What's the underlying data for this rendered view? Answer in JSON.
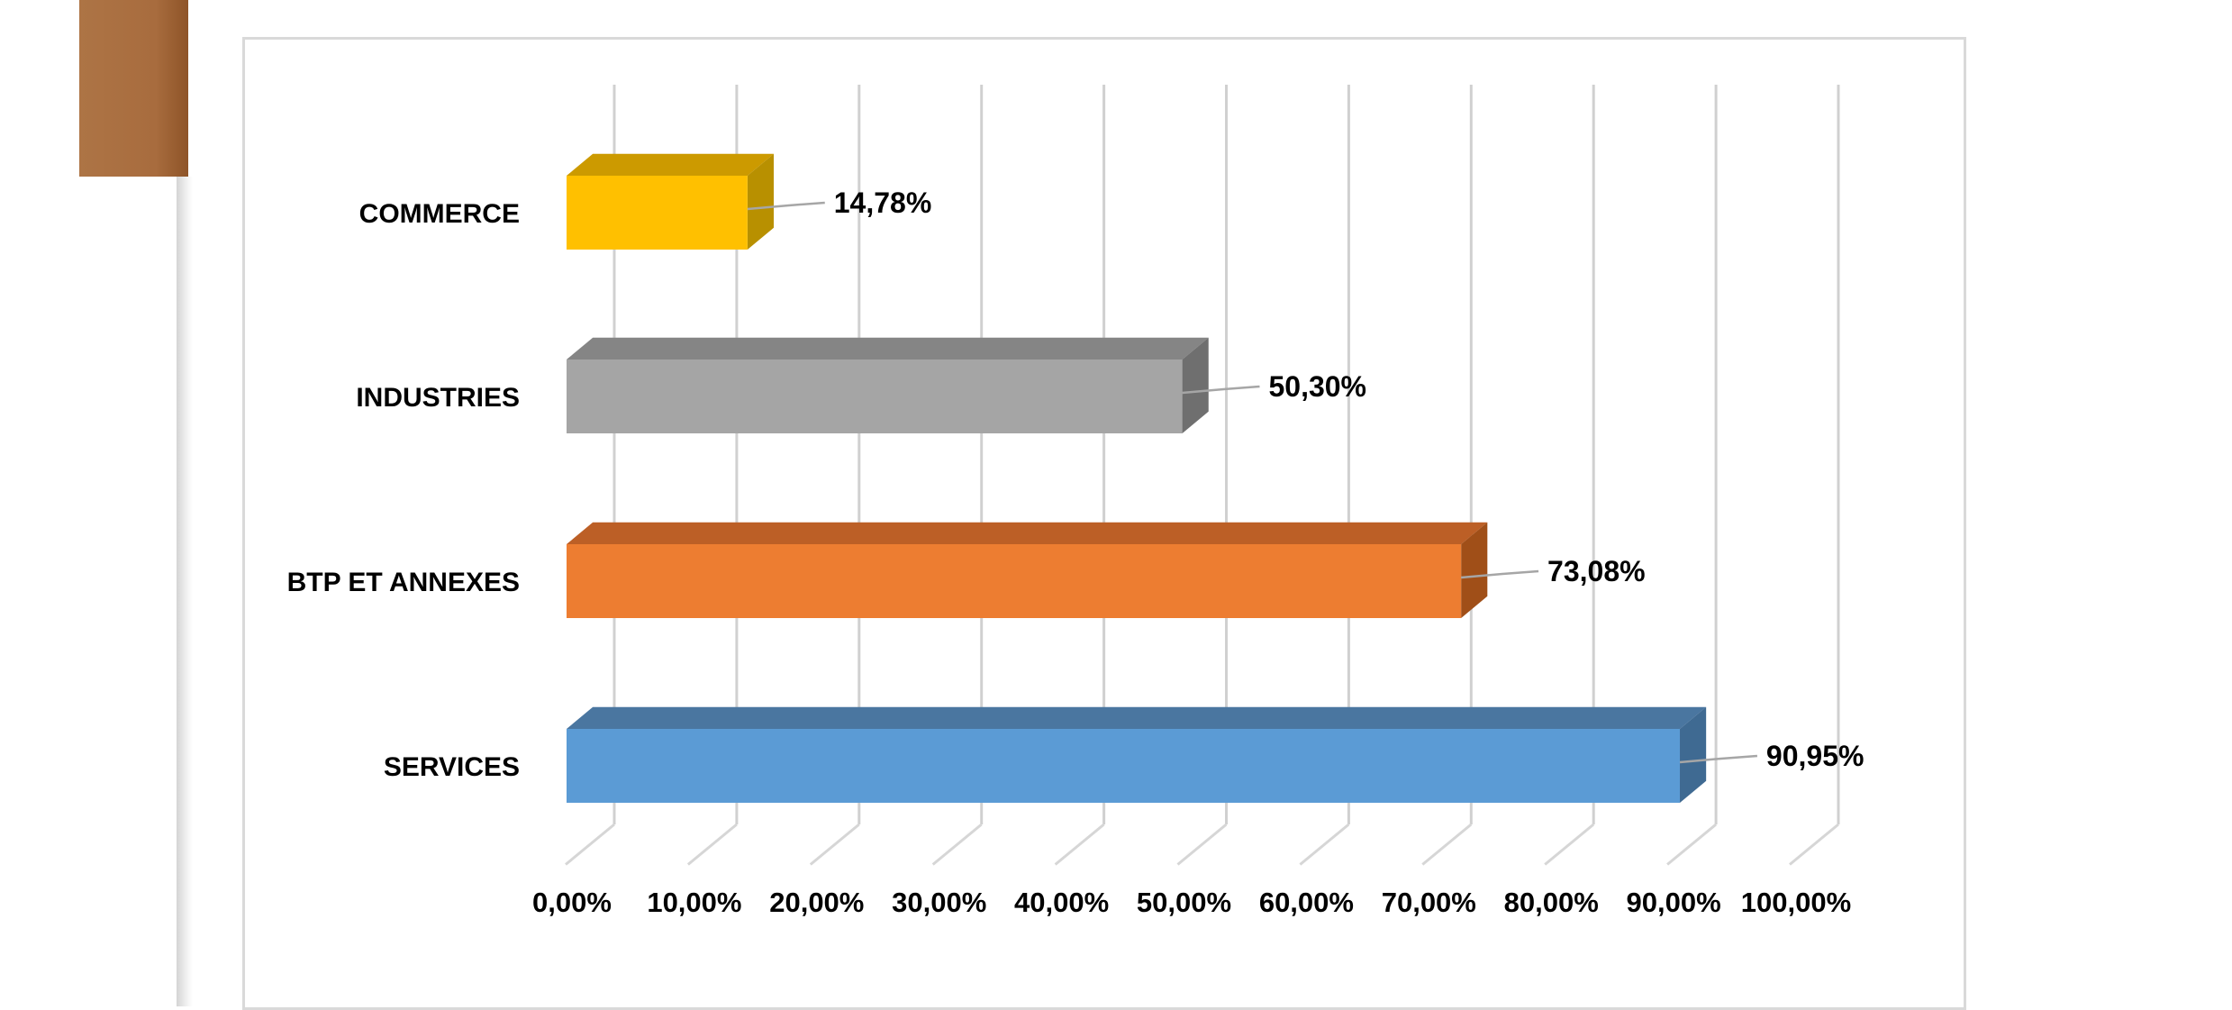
{
  "chart_data": {
    "type": "bar",
    "orientation": "horizontal",
    "style": "3d",
    "categories": [
      "COMMERCE",
      "INDUSTRIES",
      "BTP ET ANNEXES",
      "SERVICES"
    ],
    "values": [
      14.78,
      50.3,
      73.08,
      90.95
    ],
    "value_labels": [
      "14,78%",
      "50,30%",
      "73,08%",
      "90,95%"
    ],
    "colors": [
      "#ffc000",
      "#a5a5a5",
      "#ed7d31",
      "#5b9bd5"
    ],
    "side_colors": [
      "#b89000",
      "#6f6f6f",
      "#a04f18",
      "#3f6a92"
    ],
    "top_colors": [
      "#cc9a00",
      "#858585",
      "#bc5f26",
      "#4a76a0"
    ],
    "xlim": [
      0,
      100
    ],
    "ticks": [
      0,
      10,
      20,
      30,
      40,
      50,
      60,
      70,
      80,
      90,
      100
    ],
    "tick_labels": [
      "0,00%",
      "10,00%",
      "20,00%",
      "30,00%",
      "40,00%",
      "50,00%",
      "60,00%",
      "70,00%",
      "80,00%",
      "90,00%",
      "100,00%"
    ],
    "grid": true,
    "legend": "none",
    "title": "",
    "xlabel": "",
    "ylabel": ""
  },
  "decor": {
    "accent_color": "#a8703f"
  }
}
